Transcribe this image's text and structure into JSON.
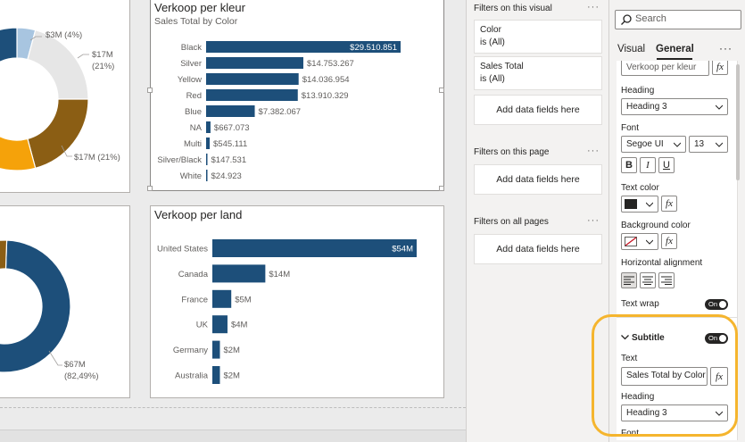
{
  "top_donut": {
    "labels": [
      "$3M (4%)",
      "$17M",
      "(21%)",
      "$17M (21%)"
    ],
    "colors": [
      "#a8c5e0",
      "#e6e6e6",
      "#8b5e14",
      "#f5a20a",
      "#1d4f7a"
    ]
  },
  "bottom_donut": {
    "labels": [
      "$67M",
      "(82,49%)"
    ],
    "colors": [
      "#1d4f7a",
      "#f5a20a",
      "#8b5e14"
    ]
  },
  "color_visual": {
    "title": "Verkoop per kleur",
    "subtitle": "Sales Total by Color"
  },
  "country_visual": {
    "title": "Verkoop per land"
  },
  "chart_data": [
    {
      "type": "bar",
      "title": "Verkoop per kleur",
      "subtitle": "Sales Total by Color",
      "categories": [
        "Black",
        "Silver",
        "Yellow",
        "Red",
        "Blue",
        "NA",
        "Multi",
        "Silver/Black",
        "White"
      ],
      "values": [
        29510851,
        14753267,
        14036954,
        13910329,
        7382067,
        667073,
        545111,
        147531,
        24923
      ],
      "labels": [
        "$29.510.851",
        "$14.753.267",
        "$14.036.954",
        "$13.910.329",
        "$7.382.067",
        "$667.073",
        "$545.111",
        "$147.531",
        "$24.923"
      ],
      "color": "#1d4f7a"
    },
    {
      "type": "bar",
      "title": "Verkoop per land",
      "categories": [
        "United States",
        "Canada",
        "France",
        "UK",
        "Germany",
        "Australia"
      ],
      "values": [
        54,
        14,
        5,
        4,
        2,
        2
      ],
      "labels": [
        "$54M",
        "$14M",
        "$5M",
        "$4M",
        "$2M",
        "$2M"
      ],
      "color": "#1d4f7a"
    }
  ],
  "filters": {
    "on_visual": "Filters on this visual",
    "card1_field": "Color",
    "card1_state": "is (All)",
    "card2_field": "Sales Total",
    "card2_state": "is (All)",
    "add_fields": "Add data fields here",
    "on_page": "Filters on this page",
    "on_all": "Filters on all pages",
    "more": "···"
  },
  "format": {
    "search_placeholder": "Search",
    "tab_visual": "Visual",
    "tab_general": "General",
    "more": "···",
    "title_text_value": "Verkoop per kleur",
    "heading_label": "Heading",
    "heading_value": "Heading 3",
    "font_label": "Font",
    "font_value": "Segoe UI",
    "font_size": "13",
    "bold": "B",
    "italic": "I",
    "underline": "U",
    "text_color_label": "Text color",
    "bg_color_label": "Background color",
    "halign_label": "Horizontal alignment",
    "text_wrap_label": "Text wrap",
    "toggle_on": "On",
    "fx": "fx",
    "subtitle_label": "Subtitle",
    "sub_text_label": "Text",
    "sub_text_value": "Sales Total by Color",
    "sub_heading_label": "Heading",
    "sub_heading_value": "Heading 3",
    "sub_font_label": "Font"
  },
  "colors": {
    "text_color": "#252423",
    "accent_highlight": "#f5b52e",
    "bar": "#1d4f7a"
  }
}
